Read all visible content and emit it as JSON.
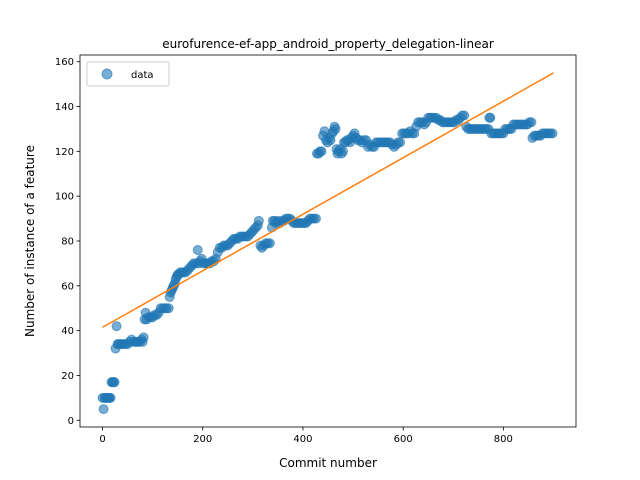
{
  "chart_data": {
    "type": "scatter",
    "title": "eurofurence-ef-app_android_property_delegation-linear",
    "xlabel": "Commit number",
    "ylabel": "Number of instance of a feature",
    "xlim": [
      -45,
      945
    ],
    "ylim": [
      -3,
      163
    ],
    "xticks": [
      0,
      200,
      400,
      600,
      800
    ],
    "yticks": [
      0,
      20,
      40,
      60,
      80,
      100,
      120,
      140,
      160
    ],
    "legend": {
      "position": "top-left",
      "entries": [
        "data"
      ]
    },
    "grid": false,
    "colors": {
      "points": "#1f77b4",
      "fit": "#ff7f0e"
    },
    "series": [
      {
        "name": "data",
        "kind": "scatter",
        "points": [
          [
            0,
            10
          ],
          [
            2,
            5
          ],
          [
            4,
            10
          ],
          [
            6,
            10
          ],
          [
            8,
            10
          ],
          [
            10,
            10
          ],
          [
            12,
            10
          ],
          [
            14,
            10
          ],
          [
            16,
            10
          ],
          [
            18,
            17
          ],
          [
            20,
            17
          ],
          [
            22,
            17
          ],
          [
            24,
            17
          ],
          [
            26,
            32
          ],
          [
            28,
            42
          ],
          [
            30,
            34
          ],
          [
            32,
            34
          ],
          [
            35,
            34
          ],
          [
            38,
            34
          ],
          [
            42,
            34
          ],
          [
            46,
            34
          ],
          [
            50,
            34
          ],
          [
            54,
            35
          ],
          [
            58,
            36
          ],
          [
            62,
            35
          ],
          [
            66,
            35
          ],
          [
            70,
            35
          ],
          [
            74,
            35
          ],
          [
            78,
            36
          ],
          [
            80,
            35
          ],
          [
            82,
            37
          ],
          [
            84,
            45
          ],
          [
            86,
            48
          ],
          [
            88,
            45
          ],
          [
            92,
            46
          ],
          [
            96,
            46
          ],
          [
            100,
            46
          ],
          [
            104,
            47
          ],
          [
            108,
            47
          ],
          [
            112,
            48
          ],
          [
            116,
            50
          ],
          [
            120,
            50
          ],
          [
            124,
            50
          ],
          [
            128,
            50
          ],
          [
            132,
            50
          ],
          [
            134,
            55
          ],
          [
            136,
            57
          ],
          [
            138,
            58
          ],
          [
            140,
            59
          ],
          [
            142,
            60
          ],
          [
            144,
            61
          ],
          [
            146,
            63
          ],
          [
            148,
            64
          ],
          [
            150,
            65
          ],
          [
            152,
            65
          ],
          [
            155,
            66
          ],
          [
            158,
            66
          ],
          [
            162,
            66
          ],
          [
            166,
            66
          ],
          [
            170,
            67
          ],
          [
            174,
            68
          ],
          [
            178,
            69
          ],
          [
            182,
            70
          ],
          [
            186,
            70
          ],
          [
            190,
            76
          ],
          [
            192,
            70
          ],
          [
            195,
            71
          ],
          [
            198,
            72
          ],
          [
            202,
            70
          ],
          [
            206,
            70
          ],
          [
            210,
            70
          ],
          [
            214,
            70
          ],
          [
            218,
            71
          ],
          [
            222,
            71
          ],
          [
            226,
            72
          ],
          [
            230,
            75
          ],
          [
            234,
            77
          ],
          [
            238,
            77
          ],
          [
            242,
            78
          ],
          [
            246,
            78
          ],
          [
            250,
            78
          ],
          [
            254,
            79
          ],
          [
            258,
            80
          ],
          [
            262,
            81
          ],
          [
            266,
            81
          ],
          [
            270,
            81
          ],
          [
            274,
            82
          ],
          [
            278,
            82
          ],
          [
            282,
            82
          ],
          [
            286,
            82
          ],
          [
            290,
            82
          ],
          [
            294,
            83
          ],
          [
            298,
            84
          ],
          [
            302,
            85
          ],
          [
            306,
            86
          ],
          [
            310,
            87
          ],
          [
            312,
            89
          ],
          [
            315,
            78
          ],
          [
            318,
            77
          ],
          [
            322,
            78
          ],
          [
            326,
            79
          ],
          [
            330,
            79
          ],
          [
            334,
            79
          ],
          [
            338,
            86
          ],
          [
            340,
            89
          ],
          [
            343,
            89
          ],
          [
            346,
            88
          ],
          [
            350,
            89
          ],
          [
            354,
            88
          ],
          [
            358,
            89
          ],
          [
            362,
            89
          ],
          [
            366,
            90
          ],
          [
            370,
            90
          ],
          [
            374,
            90
          ],
          [
            378,
            89
          ],
          [
            382,
            88
          ],
          [
            386,
            88
          ],
          [
            390,
            88
          ],
          [
            394,
            88
          ],
          [
            398,
            88
          ],
          [
            402,
            88
          ],
          [
            406,
            88
          ],
          [
            410,
            89
          ],
          [
            414,
            90
          ],
          [
            418,
            90
          ],
          [
            422,
            90
          ],
          [
            426,
            90
          ],
          [
            428,
            119
          ],
          [
            431,
            119
          ],
          [
            434,
            120
          ],
          [
            437,
            120
          ],
          [
            440,
            127
          ],
          [
            443,
            129
          ],
          [
            446,
            125
          ],
          [
            449,
            124
          ],
          [
            452,
            126
          ],
          [
            455,
            125
          ],
          [
            458,
            128
          ],
          [
            461,
            129
          ],
          [
            463,
            131
          ],
          [
            465,
            130
          ],
          [
            467,
            121
          ],
          [
            469,
            119
          ],
          [
            471,
            120
          ],
          [
            474,
            121
          ],
          [
            477,
            119
          ],
          [
            480,
            120
          ],
          [
            482,
            124
          ],
          [
            485,
            124
          ],
          [
            488,
            125
          ],
          [
            491,
            125
          ],
          [
            494,
            124
          ],
          [
            497,
            126
          ],
          [
            500,
            127
          ],
          [
            503,
            128
          ],
          [
            506,
            126
          ],
          [
            510,
            125
          ],
          [
            514,
            125
          ],
          [
            518,
            124
          ],
          [
            522,
            125
          ],
          [
            526,
            125
          ],
          [
            530,
            122
          ],
          [
            534,
            123
          ],
          [
            538,
            122
          ],
          [
            542,
            122
          ],
          [
            546,
            124
          ],
          [
            550,
            124
          ],
          [
            554,
            124
          ],
          [
            558,
            124
          ],
          [
            562,
            124
          ],
          [
            566,
            124
          ],
          [
            570,
            124
          ],
          [
            574,
            124
          ],
          [
            578,
            123
          ],
          [
            582,
            122
          ],
          [
            586,
            123
          ],
          [
            590,
            124
          ],
          [
            594,
            124
          ],
          [
            598,
            128
          ],
          [
            602,
            128
          ],
          [
            606,
            128
          ],
          [
            610,
            128
          ],
          [
            614,
            129
          ],
          [
            618,
            128
          ],
          [
            622,
            128
          ],
          [
            626,
            131
          ],
          [
            630,
            133
          ],
          [
            634,
            133
          ],
          [
            638,
            133
          ],
          [
            642,
            132
          ],
          [
            646,
            133
          ],
          [
            650,
            135
          ],
          [
            654,
            135
          ],
          [
            658,
            135
          ],
          [
            662,
            135
          ],
          [
            666,
            135
          ],
          [
            670,
            134
          ],
          [
            674,
            134
          ],
          [
            678,
            133
          ],
          [
            682,
            133
          ],
          [
            686,
            133
          ],
          [
            690,
            133
          ],
          [
            694,
            133
          ],
          [
            698,
            133
          ],
          [
            702,
            133
          ],
          [
            706,
            134
          ],
          [
            710,
            134
          ],
          [
            714,
            135
          ],
          [
            718,
            136
          ],
          [
            722,
            136
          ],
          [
            726,
            131
          ],
          [
            730,
            130
          ],
          [
            734,
            130
          ],
          [
            738,
            130
          ],
          [
            742,
            130
          ],
          [
            746,
            130
          ],
          [
            750,
            130
          ],
          [
            754,
            130
          ],
          [
            758,
            130
          ],
          [
            762,
            130
          ],
          [
            766,
            130
          ],
          [
            770,
            130
          ],
          [
            772,
            135
          ],
          [
            774,
            135
          ],
          [
            776,
            128
          ],
          [
            780,
            128
          ],
          [
            784,
            128
          ],
          [
            788,
            128
          ],
          [
            792,
            128
          ],
          [
            796,
            128
          ],
          [
            800,
            128
          ],
          [
            804,
            130
          ],
          [
            808,
            130
          ],
          [
            812,
            130
          ],
          [
            816,
            130
          ],
          [
            820,
            132
          ],
          [
            824,
            132
          ],
          [
            828,
            132
          ],
          [
            832,
            132
          ],
          [
            836,
            132
          ],
          [
            840,
            132
          ],
          [
            844,
            132
          ],
          [
            848,
            132
          ],
          [
            852,
            133
          ],
          [
            856,
            133
          ],
          [
            858,
            126
          ],
          [
            862,
            127
          ],
          [
            866,
            127
          ],
          [
            870,
            127
          ],
          [
            874,
            127
          ],
          [
            878,
            128
          ],
          [
            882,
            128
          ],
          [
            886,
            128
          ],
          [
            890,
            128
          ],
          [
            894,
            128
          ],
          [
            898,
            128
          ]
        ]
      },
      {
        "name": "",
        "kind": "line",
        "points": [
          [
            0,
            41.5
          ],
          [
            900,
            155
          ]
        ]
      }
    ]
  }
}
